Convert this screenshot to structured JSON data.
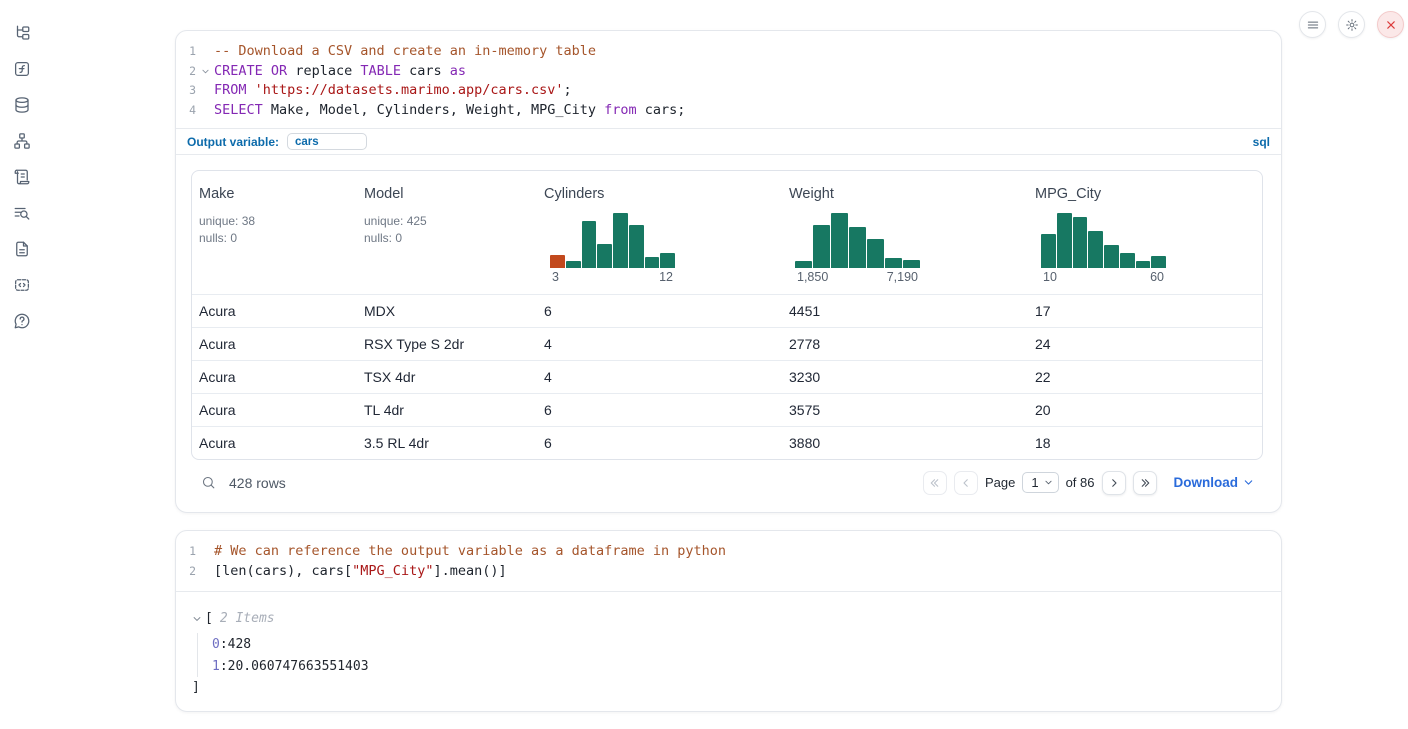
{
  "colors": {
    "accent_blue": "#0d6bab",
    "link_blue": "#2a6bdb",
    "hist_green": "#177862",
    "hist_orange": "#c2491d",
    "close_red": "#dc3b3b"
  },
  "sidebar": {
    "items": [
      {
        "id": "file-explorer",
        "icon": "tree"
      },
      {
        "id": "functions",
        "icon": "f-square"
      },
      {
        "id": "datasources",
        "icon": "database"
      },
      {
        "id": "dependency-graph",
        "icon": "graph"
      },
      {
        "id": "scratchpad",
        "icon": "scroll"
      },
      {
        "id": "logs",
        "icon": "list-search"
      },
      {
        "id": "documentation",
        "icon": "document"
      },
      {
        "id": "snippets",
        "icon": "code-square"
      },
      {
        "id": "help",
        "icon": "help-bubble"
      }
    ]
  },
  "topbar": {
    "buttons": [
      {
        "id": "notebook-menu",
        "icon": "menu",
        "danger": false
      },
      {
        "id": "settings",
        "icon": "gear",
        "danger": false
      },
      {
        "id": "shutdown",
        "icon": "close",
        "danger": true
      }
    ]
  },
  "sql_cell": {
    "lines": [
      {
        "n": "1",
        "tokens": [
          {
            "t": "-- Download a CSV and create an in-memory table",
            "c": "comment"
          }
        ]
      },
      {
        "n": "2",
        "fold": true,
        "tokens": [
          {
            "t": "CREATE",
            "c": "kw"
          },
          {
            "t": " ",
            "c": "plain"
          },
          {
            "t": "OR",
            "c": "kw"
          },
          {
            "t": " replace ",
            "c": "plain"
          },
          {
            "t": "TABLE",
            "c": "kw"
          },
          {
            "t": " cars ",
            "c": "plain"
          },
          {
            "t": "as",
            "c": "kw"
          }
        ]
      },
      {
        "n": "3",
        "tokens": [
          {
            "t": "FROM",
            "c": "kw"
          },
          {
            "t": " ",
            "c": "plain"
          },
          {
            "t": "'https://datasets.marimo.app/cars.csv'",
            "c": "str"
          },
          {
            "t": ";",
            "c": "plain"
          }
        ]
      },
      {
        "n": "4",
        "tokens": [
          {
            "t": "SELECT",
            "c": "kw"
          },
          {
            "t": " Make, Model, Cylinders, Weight, MPG_City ",
            "c": "plain"
          },
          {
            "t": "from",
            "c": "kw"
          },
          {
            "t": " cars;",
            "c": "plain"
          }
        ]
      }
    ],
    "footer": {
      "label": "Output variable:",
      "variable_value": "cars",
      "language": "sql"
    }
  },
  "chart_data": [
    {
      "type": "bar",
      "title": "Cylinders column histogram",
      "x_range_labels": [
        "3",
        "12"
      ],
      "values_relative": [
        0.24,
        0.13,
        0.85,
        0.44,
        1.0,
        0.79,
        0.2,
        0.28
      ],
      "bar_colors": [
        "#c2491d",
        "#177862",
        "#177862",
        "#177862",
        "#177862",
        "#177862",
        "#177862",
        "#177862"
      ]
    },
    {
      "type": "bar",
      "title": "Weight column histogram",
      "x_range_labels": [
        "1,850",
        "7,190"
      ],
      "values_relative": [
        0.13,
        0.78,
        1.0,
        0.75,
        0.53,
        0.19,
        0.15
      ],
      "bar_colors": [
        "#177862",
        "#177862",
        "#177862",
        "#177862",
        "#177862",
        "#177862",
        "#177862"
      ]
    },
    {
      "type": "bar",
      "title": "MPG_City column histogram",
      "x_range_labels": [
        "10",
        "60"
      ],
      "values_relative": [
        0.62,
        1.0,
        0.92,
        0.68,
        0.42,
        0.28,
        0.12,
        0.21
      ],
      "bar_colors": [
        "#177862",
        "#177862",
        "#177862",
        "#177862",
        "#177862",
        "#177862",
        "#177862",
        "#177862"
      ]
    }
  ],
  "table": {
    "columns": [
      {
        "name": "Make",
        "stats": [
          "unique: 38",
          "nulls: 0"
        ]
      },
      {
        "name": "Model",
        "stats": [
          "unique: 425",
          "nulls: 0"
        ]
      },
      {
        "name": "Cylinders",
        "hist": 0
      },
      {
        "name": "Weight",
        "hist": 1
      },
      {
        "name": "MPG_City",
        "hist": 2
      }
    ],
    "rows": [
      [
        "Acura",
        "MDX",
        "6",
        "4451",
        "17"
      ],
      [
        "Acura",
        "RSX Type S 2dr",
        "4",
        "2778",
        "24"
      ],
      [
        "Acura",
        "TSX 4dr",
        "4",
        "3230",
        "22"
      ],
      [
        "Acura",
        "TL 4dr",
        "6",
        "3575",
        "20"
      ],
      [
        "Acura",
        "3.5 RL 4dr",
        "6",
        "3880",
        "18"
      ]
    ],
    "footer": {
      "row_count": "428 rows",
      "page_label": "Page",
      "page_value": "1",
      "of_label": "of 86",
      "download_label": "Download"
    }
  },
  "python_cell": {
    "lines": [
      {
        "n": "1",
        "tokens": [
          {
            "t": "# We can reference the output variable as a dataframe in python",
            "c": "comment"
          }
        ]
      },
      {
        "n": "2",
        "tokens": [
          {
            "t": "[len(cars), cars[",
            "c": "plain"
          },
          {
            "t": "\"MPG_City\"",
            "c": "str"
          },
          {
            "t": "].mean()]",
            "c": "plain"
          }
        ]
      }
    ],
    "output": {
      "bracket_open": "[",
      "items_label": "2 Items",
      "entries": [
        {
          "key": "0",
          "value": "428"
        },
        {
          "key": "1",
          "value": "20.060747663551403"
        }
      ],
      "bracket_close": "]"
    }
  }
}
